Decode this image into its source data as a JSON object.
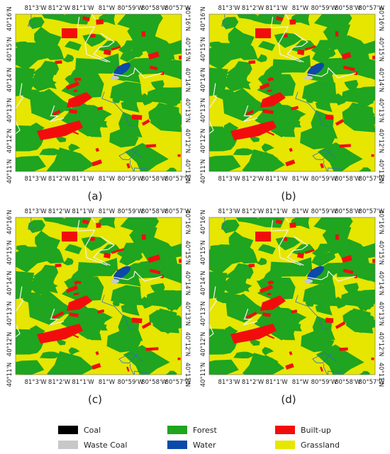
{
  "lon_ticks": [
    "81°3'W",
    "81°2'W",
    "81°1'W",
    "81°W",
    "80°59'W",
    "80°58'W",
    "80°57'W"
  ],
  "lat_ticks": [
    "40°16'N",
    "40°15'N",
    "40°14'N",
    "40°13'N",
    "40°12'N",
    "40°11'N"
  ],
  "panels": [
    {
      "label": "(a)"
    },
    {
      "label": "(b)"
    },
    {
      "label": "(c)"
    },
    {
      "label": "(d)"
    }
  ],
  "legend": [
    {
      "name": "Coal",
      "color": "#000000"
    },
    {
      "name": "Waste Coal",
      "color": "#c8c8c8"
    },
    {
      "name": "Forest",
      "color": "#1fa51f"
    },
    {
      "name": "Water",
      "color": "#0b4aa8"
    },
    {
      "name": "Built-up",
      "color": "#f20d0d"
    },
    {
      "name": "Grassland",
      "color": "#e6e600"
    }
  ]
}
